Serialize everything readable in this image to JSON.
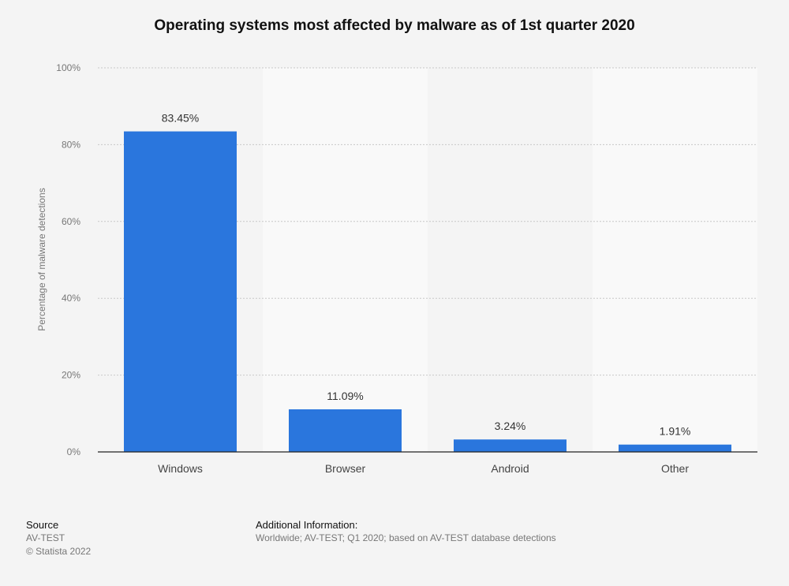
{
  "chart_data": {
    "type": "bar",
    "title": "Operating systems most affected by malware as of 1st quarter 2020",
    "ylabel": "Percentage of malware detections",
    "xlabel": "",
    "categories": [
      "Windows",
      "Browser",
      "Android",
      "Other"
    ],
    "values": [
      83.45,
      11.09,
      3.24,
      1.91
    ],
    "data_labels": [
      "83.45%",
      "11.09%",
      "3.24%",
      "1.91%"
    ],
    "ylim": [
      0,
      100
    ],
    "yticks": [
      0,
      20,
      40,
      60,
      80,
      100
    ],
    "ytick_labels": [
      "0%",
      "20%",
      "40%",
      "60%",
      "80%",
      "100%"
    ],
    "grid": true,
    "bar_color": "#2a76dd",
    "band_color": "#f9f9f9"
  },
  "footer": {
    "source_heading": "Source",
    "source_name": "AV-TEST",
    "copyright": "© Statista 2022",
    "info_heading": "Additional Information:",
    "info_text": "Worldwide; AV-TEST; Q1 2020; based on AV-TEST database detections"
  }
}
